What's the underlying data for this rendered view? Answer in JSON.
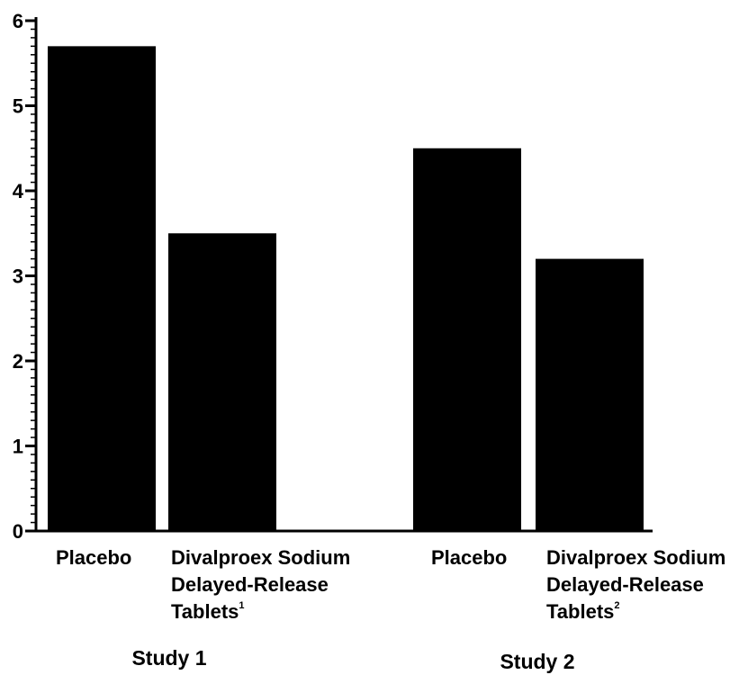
{
  "chart_data": {
    "type": "bar",
    "title": "",
    "xlabel": "",
    "ylabel": "",
    "ylim": [
      0,
      6
    ],
    "yticks": [
      0,
      1,
      2,
      3,
      4,
      5,
      6
    ],
    "grid": false,
    "bar_color": "#000000",
    "groups": [
      {
        "label": "Study 1",
        "bars": [
          {
            "label_lines": [
              "Placebo"
            ],
            "superscript": "",
            "value": 5.7
          },
          {
            "label_lines": [
              "Divalproex Sodium",
              "Delayed-Release",
              "Tablets"
            ],
            "superscript": "1",
            "value": 3.5
          }
        ]
      },
      {
        "label": "Study 2",
        "bars": [
          {
            "label_lines": [
              "Placebo"
            ],
            "superscript": "",
            "value": 4.5
          },
          {
            "label_lines": [
              "Divalproex Sodium",
              "Delayed-Release",
              "Tablets"
            ],
            "superscript": "2",
            "value": 3.2
          }
        ]
      }
    ]
  }
}
